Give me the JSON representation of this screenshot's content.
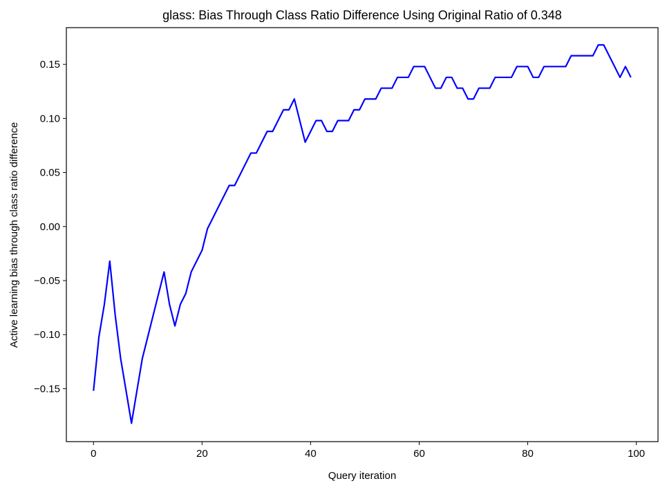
{
  "chart_data": {
    "type": "line",
    "title": "glass: Bias Through Class Ratio Difference Using Original Ratio of 0.348",
    "xlabel": "Query iteration",
    "ylabel": "Active learning bias through class ratio difference",
    "xlim": [
      -5,
      104
    ],
    "ylim": [
      -0.199,
      0.184
    ],
    "xticks": [
      0,
      20,
      40,
      60,
      80,
      100
    ],
    "yticks": [
      -0.15,
      -0.1,
      -0.05,
      0.0,
      0.05,
      0.1,
      0.15
    ],
    "xtick_labels": [
      "0",
      "20",
      "40",
      "60",
      "80",
      "100"
    ],
    "ytick_labels": [
      "−0.15",
      "−0.10",
      "−0.05",
      "0.00",
      "0.05",
      "0.10",
      "0.15"
    ],
    "grid": false,
    "line_color": "#0000ff",
    "series": [
      {
        "x": [
          0,
          1,
          2,
          3,
          4,
          5,
          6,
          7,
          8,
          9,
          10,
          11,
          12,
          13,
          14,
          15,
          16,
          17,
          18,
          19,
          20,
          21,
          22,
          23,
          24,
          25,
          26,
          27,
          28,
          29,
          30,
          31,
          32,
          33,
          34,
          35,
          36,
          37,
          38,
          39,
          40,
          41,
          42,
          43,
          44,
          45,
          46,
          47,
          48,
          49,
          50,
          51,
          52,
          53,
          54,
          55,
          56,
          57,
          58,
          59,
          60,
          61,
          62,
          63,
          64,
          65,
          66,
          67,
          68,
          69,
          70,
          71,
          72,
          73,
          74,
          75,
          76,
          77,
          78,
          79,
          80,
          81,
          82,
          83,
          84,
          85,
          86,
          87,
          88,
          89,
          90,
          91,
          92,
          93,
          94,
          95,
          96,
          97,
          98,
          99
        ],
        "y": [
          -0.152,
          -0.102,
          -0.072,
          -0.032,
          -0.082,
          -0.122,
          -0.152,
          -0.182,
          -0.152,
          -0.122,
          -0.102,
          -0.082,
          -0.062,
          -0.042,
          -0.072,
          -0.092,
          -0.072,
          -0.062,
          -0.042,
          -0.032,
          -0.022,
          -0.002,
          0.008,
          0.018,
          0.028,
          0.038,
          0.038,
          0.048,
          0.058,
          0.068,
          0.068,
          0.078,
          0.088,
          0.088,
          0.098,
          0.108,
          0.108,
          0.118,
          0.098,
          0.078,
          0.088,
          0.098,
          0.098,
          0.088,
          0.088,
          0.098,
          0.098,
          0.098,
          0.108,
          0.108,
          0.118,
          0.118,
          0.118,
          0.128,
          0.128,
          0.128,
          0.138,
          0.138,
          0.138,
          0.148,
          0.148,
          0.148,
          0.138,
          0.128,
          0.128,
          0.138,
          0.138,
          0.128,
          0.128,
          0.118,
          0.118,
          0.128,
          0.128,
          0.128,
          0.138,
          0.138,
          0.138,
          0.138,
          0.148,
          0.148,
          0.148,
          0.138,
          0.138,
          0.148,
          0.148,
          0.148,
          0.148,
          0.148,
          0.158,
          0.158,
          0.158,
          0.158,
          0.158,
          0.168,
          0.168,
          0.158,
          0.148,
          0.138,
          0.148,
          0.138
        ]
      }
    ]
  }
}
